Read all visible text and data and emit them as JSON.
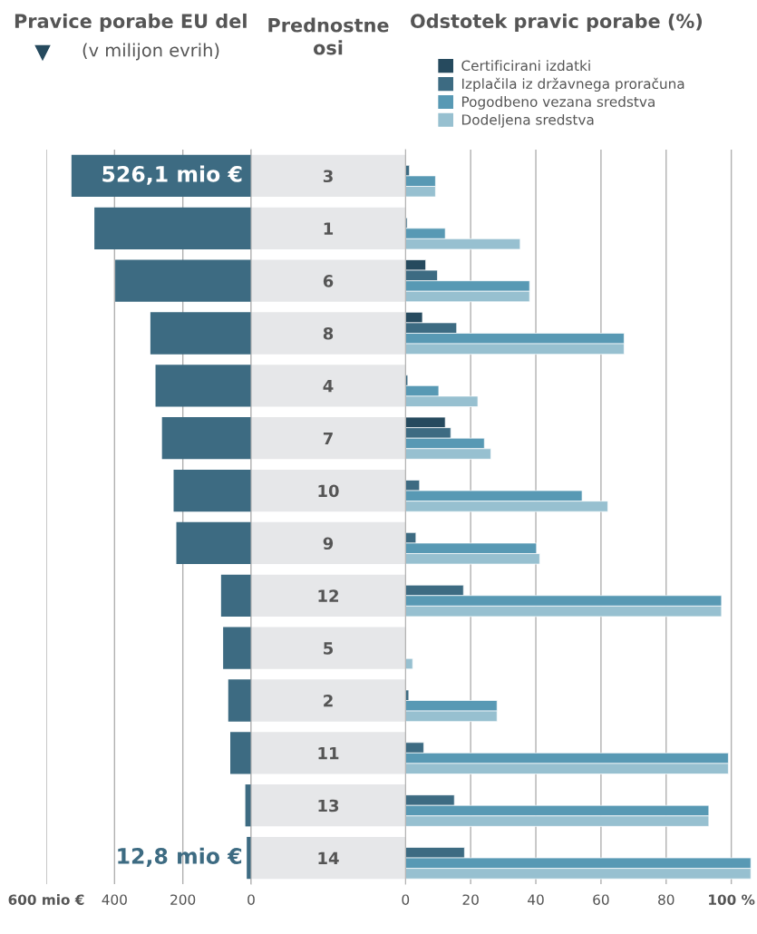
{
  "chart_data": [
    {
      "type": "bar",
      "orientation": "horizontal",
      "title": "Pravice porabe EU del",
      "subtitle": "(v milijon evrih)",
      "ylabel": "Prednostne osi",
      "categories": [
        "3",
        "1",
        "6",
        "8",
        "4",
        "7",
        "10",
        "9",
        "12",
        "5",
        "2",
        "11",
        "13",
        "14"
      ],
      "values": [
        526.1,
        459,
        398,
        295,
        280,
        261,
        227,
        219,
        88,
        82,
        67,
        61,
        17,
        12.8
      ],
      "value_labels": [
        "526,1 mio €",
        null,
        null,
        null,
        null,
        null,
        null,
        null,
        null,
        null,
        null,
        null,
        null,
        "12,8 mio €"
      ],
      "color": "#3d6b82",
      "xlim": [
        600,
        0
      ],
      "xticks": [
        {
          "value": 600,
          "label": "600 mio €"
        },
        400,
        200,
        0
      ],
      "grid": "x"
    },
    {
      "type": "bar",
      "orientation": "horizontal",
      "title": "Odstotek pravic porabe (%)",
      "categories": [
        "3",
        "1",
        "6",
        "8",
        "4",
        "7",
        "10",
        "9",
        "12",
        "5",
        "2",
        "11",
        "13",
        "14"
      ],
      "series": [
        {
          "name": "Certificirani izdatki",
          "color": "#264a5e",
          "values": [
            null,
            null,
            6.2,
            5.2,
            null,
            12.2,
            null,
            null,
            null,
            null,
            null,
            null,
            null,
            null
          ]
        },
        {
          "name": "Izplačila iz državnega proračuna",
          "color": "#3d6b82",
          "values": [
            1.2,
            0.5,
            9.8,
            15.7,
            0.7,
            13.9,
            4.3,
            3.2,
            17.8,
            null,
            1.0,
            5.6,
            15.0,
            18.1
          ]
        },
        {
          "name": "Pogodbeno vezana sredstva",
          "color": "#5899b4",
          "values": [
            9.2,
            12.2,
            38.1,
            67.1,
            10.2,
            24.2,
            54.2,
            40.2,
            97.0,
            null,
            28.1,
            99.1,
            93.1,
            106.0
          ]
        },
        {
          "name": "Dodeljena sredstva",
          "color": "#97c0d0",
          "values": [
            9.2,
            35.2,
            38.1,
            67.1,
            22.2,
            26.2,
            62.1,
            41.2,
            97.0,
            2.2,
            28.1,
            99.1,
            93.1,
            106.0
          ]
        }
      ],
      "xlim": [
        0,
        106.5
      ],
      "xticks": [
        0,
        20,
        40,
        60,
        80,
        {
          "value": 100,
          "label": "100 %"
        }
      ],
      "grid": "x",
      "legend": "top",
      "tick_labels": "x"
    }
  ]
}
